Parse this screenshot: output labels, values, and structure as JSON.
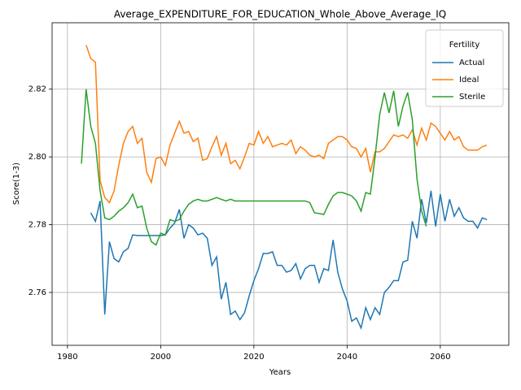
{
  "chart_data": {
    "type": "line",
    "title": "Average_EXPENDITURE_FOR_EDUCATION_Whole_Above_Average_IQ",
    "x_label": "Years",
    "y_label": "Score(1-3)",
    "legend_title": "Fertility",
    "legend_position": "upper right",
    "grid": true,
    "xlim": [
      1976.7,
      2074.7
    ],
    "ylim": [
      2.7444,
      2.8396
    ],
    "xticks": [
      1980,
      2000,
      2020,
      2040,
      2060
    ],
    "yticks": [
      2.76,
      2.78,
      {
        "value": 2.8,
        "label": "2.80"
      },
      2.82
    ],
    "x": [
      1983,
      1984,
      1985,
      1986,
      1987,
      1988,
      1989,
      1990,
      1991,
      1992,
      1993,
      1994,
      1995,
      1996,
      1997,
      1998,
      1999,
      2000,
      2001,
      2002,
      2003,
      2004,
      2005,
      2006,
      2007,
      2008,
      2009,
      2010,
      2011,
      2012,
      2013,
      2014,
      2015,
      2016,
      2017,
      2018,
      2019,
      2020,
      2021,
      2022,
      2023,
      2024,
      2025,
      2026,
      2027,
      2028,
      2029,
      2030,
      2031,
      2032,
      2033,
      2034,
      2035,
      2036,
      2037,
      2038,
      2039,
      2040,
      2041,
      2042,
      2043,
      2044,
      2045,
      2046,
      2047,
      2048,
      2049,
      2050,
      2051,
      2052,
      2053,
      2054,
      2055,
      2056,
      2057,
      2058,
      2059,
      2060,
      2061,
      2062,
      2063,
      2064,
      2065,
      2066,
      2067,
      2068,
      2069,
      2070
    ],
    "series": [
      {
        "name": "Actual",
        "color": "#1f77b4",
        "values": [
          null,
          null,
          2.7835,
          2.781,
          2.787,
          2.7535,
          2.775,
          2.77,
          2.769,
          2.772,
          2.773,
          2.777,
          2.7768,
          2.7768,
          2.7768,
          2.7768,
          2.7768,
          2.7768,
          2.777,
          2.779,
          2.7805,
          2.7845,
          2.776,
          2.78,
          2.779,
          2.777,
          2.7775,
          2.776,
          2.768,
          2.7705,
          2.758,
          2.763,
          2.7535,
          2.7545,
          2.752,
          2.754,
          2.759,
          2.7635,
          2.767,
          2.7715,
          2.7715,
          2.772,
          2.768,
          2.768,
          2.766,
          2.7665,
          2.7685,
          2.764,
          2.767,
          2.768,
          2.768,
          2.763,
          2.767,
          2.7665,
          2.7755,
          2.766,
          2.761,
          2.7575,
          2.7515,
          2.7525,
          2.7495,
          2.7555,
          2.752,
          2.7555,
          2.7535,
          2.76,
          2.7615,
          2.7635,
          2.7635,
          2.769,
          2.7695,
          2.781,
          2.776,
          2.7875,
          2.7805,
          2.79,
          2.7795,
          2.789,
          2.781,
          2.7875,
          2.7825,
          2.785,
          2.782,
          2.781,
          2.781,
          2.779,
          2.782,
          2.7815
        ]
      },
      {
        "name": "Ideal",
        "color": "#ff7f0e",
        "values": [
          null,
          2.833,
          2.829,
          2.828,
          2.793,
          2.788,
          2.7865,
          2.79,
          2.7975,
          2.804,
          2.8075,
          2.809,
          2.804,
          2.8055,
          2.7955,
          2.7925,
          2.7995,
          2.8,
          2.7975,
          2.8035,
          2.807,
          2.8105,
          2.807,
          2.8075,
          2.8045,
          2.8055,
          2.799,
          2.7995,
          2.803,
          2.806,
          2.8005,
          2.804,
          2.798,
          2.799,
          2.7965,
          2.8,
          2.804,
          2.8035,
          2.8075,
          2.804,
          2.806,
          2.803,
          2.8035,
          2.804,
          2.8035,
          2.805,
          2.801,
          2.803,
          2.802,
          2.8005,
          2.8,
          2.8005,
          2.7995,
          2.804,
          2.805,
          2.806,
          2.806,
          2.805,
          2.803,
          2.8025,
          2.8,
          2.8025,
          2.7955,
          2.8015,
          2.8015,
          2.8025,
          2.8045,
          2.8065,
          2.806,
          2.8065,
          2.8055,
          2.808,
          2.8035,
          2.8085,
          2.805,
          2.81,
          2.809,
          2.807,
          2.805,
          2.8075,
          2.805,
          2.806,
          2.803,
          2.802,
          2.802,
          2.802,
          2.803,
          2.8035
        ]
      },
      {
        "name": "Sterile",
        "color": "#2ca02c",
        "values": [
          2.798,
          2.82,
          2.809,
          2.804,
          2.79,
          2.782,
          2.7815,
          2.7825,
          2.784,
          2.785,
          2.7865,
          2.789,
          2.785,
          2.7855,
          2.779,
          2.775,
          2.774,
          2.7775,
          2.777,
          2.7815,
          2.781,
          2.7815,
          2.784,
          2.786,
          2.787,
          2.7875,
          2.787,
          2.787,
          2.7875,
          2.788,
          2.7875,
          2.787,
          2.7875,
          2.787,
          2.787,
          2.787,
          2.787,
          2.787,
          2.787,
          2.787,
          2.787,
          2.787,
          2.787,
          2.787,
          2.787,
          2.787,
          2.787,
          2.787,
          2.787,
          2.7865,
          2.7835,
          2.7833,
          2.783,
          2.786,
          2.7885,
          2.7895,
          2.7895,
          2.789,
          2.7885,
          2.787,
          2.784,
          2.7895,
          2.789,
          2.8,
          2.8125,
          2.819,
          2.813,
          2.8195,
          2.809,
          2.815,
          2.819,
          2.811,
          2.7935,
          2.784,
          2.7795,
          null,
          null,
          null,
          null,
          null,
          null,
          null,
          null,
          null,
          null,
          null,
          null,
          null
        ]
      }
    ]
  }
}
